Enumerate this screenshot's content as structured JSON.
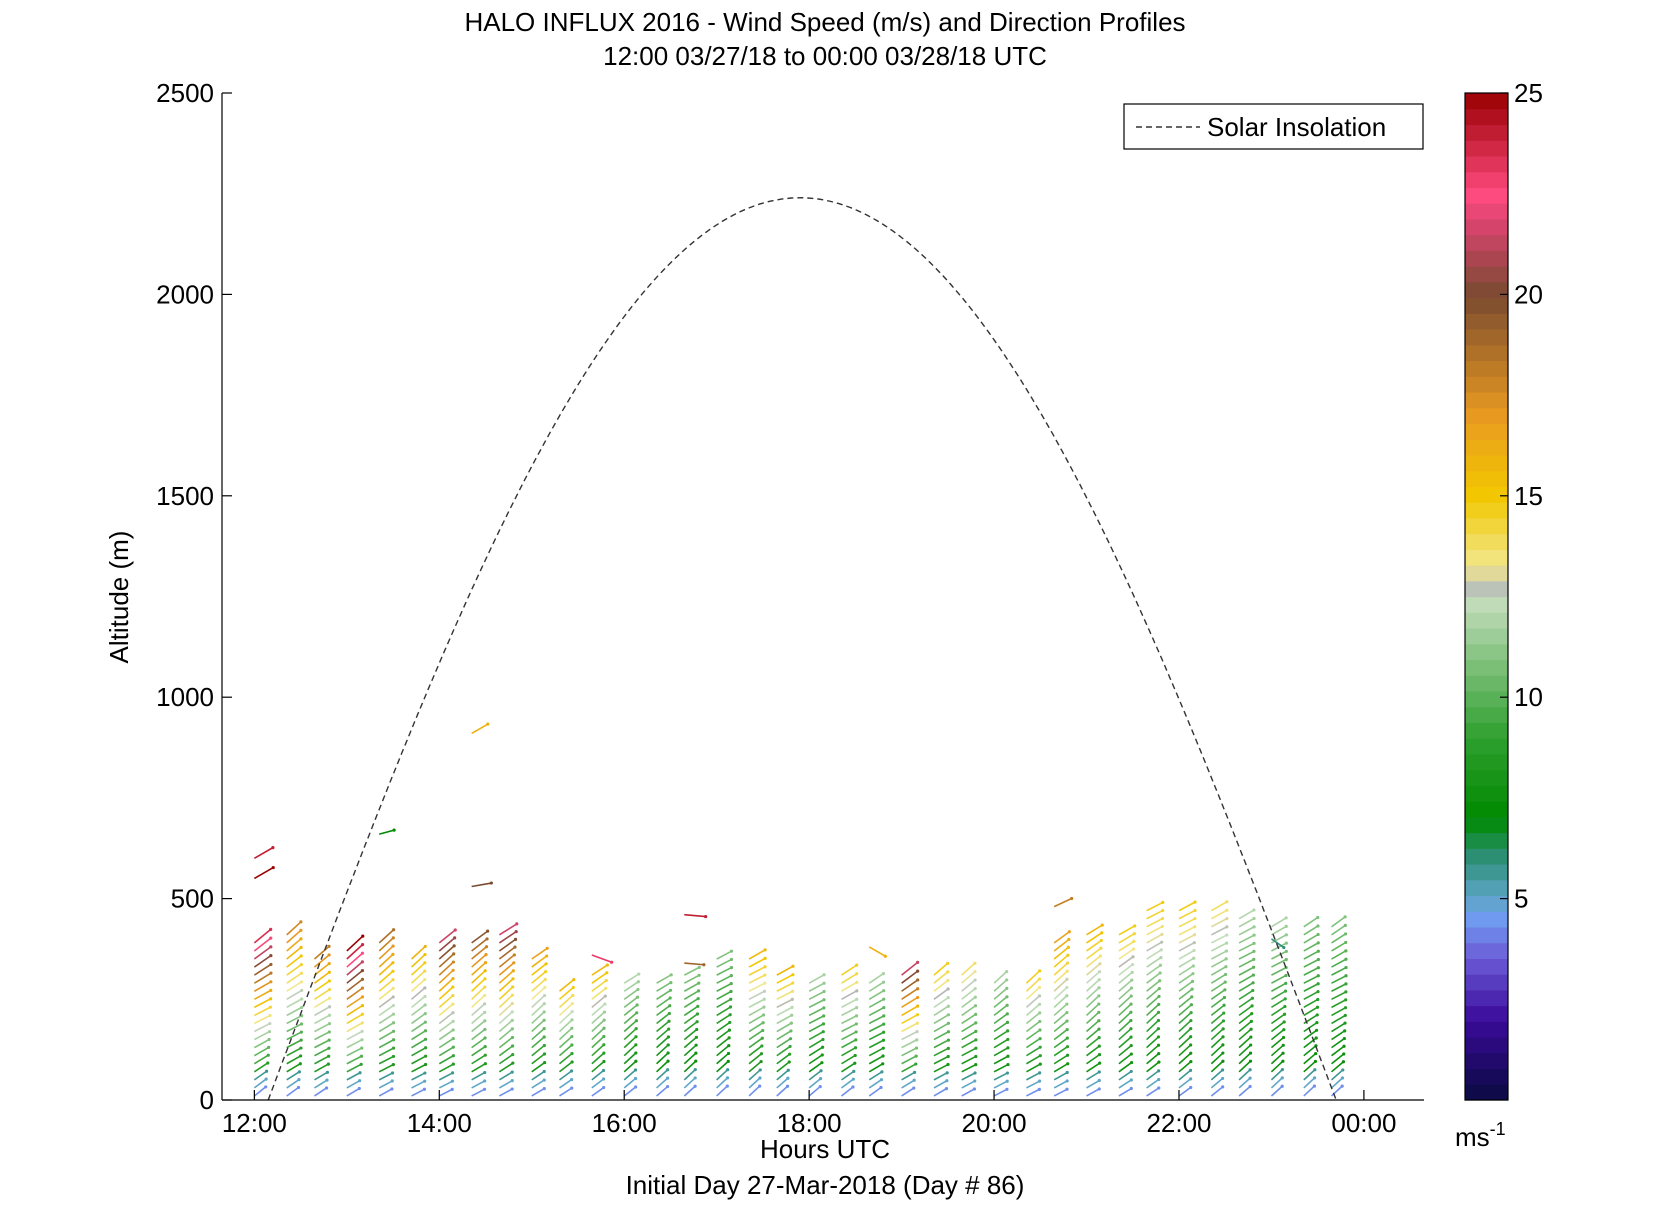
{
  "chart_data": {
    "type": "wind-barb-profile",
    "title": "HALO INFLUX 2016 - Wind Speed (m/s) and Direction Profiles",
    "subtitle": "12:00 03/27/18 to 00:00 03/28/18  UTC",
    "xlabel": "Hours UTC",
    "x_sublabel": "Initial Day 27-Mar-2018 (Day # 86)",
    "ylabel": "Altitude (m)",
    "xlim": [
      11.65,
      24.65
    ],
    "ylim": [
      0,
      2500
    ],
    "x_ticks": [
      {
        "value": 12,
        "label": "12:00"
      },
      {
        "value": 14,
        "label": "14:00"
      },
      {
        "value": 16,
        "label": "16:00"
      },
      {
        "value": 18,
        "label": "18:00"
      },
      {
        "value": 20,
        "label": "20:00"
      },
      {
        "value": 22,
        "label": "22:00"
      },
      {
        "value": 24,
        "label": "00:00"
      }
    ],
    "y_ticks": [
      0,
      500,
      1000,
      1500,
      2000,
      2500
    ],
    "legend": {
      "entry": "Solar Insolation",
      "style": "dashed",
      "position": "top-right"
    },
    "solar_insolation": {
      "rise_hour": 12.15,
      "set_hour": 23.7,
      "peak_hour": 17.9,
      "peak_altitude": 2240
    },
    "colorbar": {
      "range": [
        0,
        25
      ],
      "ticks": [
        5,
        10,
        15,
        20,
        25
      ],
      "unit": "ms",
      "unit_exponent": "-1",
      "colormap": [
        [
          0,
          "#0a0a40"
        ],
        [
          2,
          "#3a0a9a"
        ],
        [
          3.5,
          "#6b5bd6"
        ],
        [
          4.5,
          "#6f9af0"
        ],
        [
          5,
          "#5fa6c8"
        ],
        [
          6,
          "#2f8f7a"
        ],
        [
          7,
          "#008a00"
        ],
        [
          9,
          "#2fa02f"
        ],
        [
          12.5,
          "#c8dfc0"
        ],
        [
          12.8,
          "#b4b4b4"
        ],
        [
          13.2,
          "#f2e890"
        ],
        [
          15,
          "#f2c800"
        ],
        [
          17,
          "#e89a20"
        ],
        [
          20,
          "#7a4a30"
        ],
        [
          21.5,
          "#cc4466"
        ],
        [
          22.5,
          "#ff4a80"
        ],
        [
          25,
          "#990000"
        ]
      ]
    },
    "wind_profiles": [
      {
        "hour": 12.0,
        "top": 400,
        "max_speed": 24,
        "extra": [
          {
            "alt": 550,
            "speed": 25,
            "dir": 60
          },
          {
            "alt": 600,
            "speed": 24,
            "dir": 60
          }
        ]
      },
      {
        "hour": 12.35,
        "top": 420,
        "max_speed": 18
      },
      {
        "hour": 12.65,
        "top": 350,
        "max_speed": 18
      },
      {
        "hour": 13.0,
        "top": 370,
        "max_speed": 25
      },
      {
        "hour": 13.35,
        "top": 400,
        "max_speed": 19,
        "extra": [
          {
            "alt": 660,
            "speed": 7,
            "dir": 75
          }
        ]
      },
      {
        "hour": 13.7,
        "top": 350,
        "max_speed": 16
      },
      {
        "hour": 14.0,
        "top": 400,
        "max_speed": 22
      },
      {
        "hour": 14.35,
        "top": 400,
        "max_speed": 20,
        "extra": [
          {
            "alt": 530,
            "speed": 20,
            "dir": 80
          },
          {
            "alt": 910,
            "speed": 16,
            "dir": 60
          }
        ]
      },
      {
        "hour": 14.65,
        "top": 420,
        "max_speed": 22
      },
      {
        "hour": 15.0,
        "top": 360,
        "max_speed": 17
      },
      {
        "hour": 15.3,
        "top": 280,
        "max_speed": 16
      },
      {
        "hour": 15.65,
        "top": 320,
        "max_speed": 16,
        "extra": [
          {
            "alt": 360,
            "speed": 23,
            "dir": 110
          }
        ]
      },
      {
        "hour": 16.0,
        "top": 290,
        "max_speed": 12
      },
      {
        "hour": 16.35,
        "top": 290,
        "max_speed": 11
      },
      {
        "hour": 16.65,
        "top": 310,
        "max_speed": 11,
        "extra": [
          {
            "alt": 340,
            "speed": 19,
            "dir": 95
          },
          {
            "alt": 460,
            "speed": 24,
            "dir": 95
          }
        ]
      },
      {
        "hour": 17.0,
        "top": 360,
        "max_speed": 11
      },
      {
        "hour": 17.35,
        "top": 360,
        "max_speed": 16
      },
      {
        "hour": 17.65,
        "top": 320,
        "max_speed": 16
      },
      {
        "hour": 18.0,
        "top": 300,
        "max_speed": 12
      },
      {
        "hour": 18.35,
        "top": 320,
        "max_speed": 15
      },
      {
        "hour": 18.65,
        "top": 300,
        "max_speed": 12,
        "extra": [
          {
            "alt": 380,
            "speed": 16,
            "dir": 120
          }
        ]
      },
      {
        "hour": 19.0,
        "top": 320,
        "max_speed": 22
      },
      {
        "hour": 19.35,
        "top": 320,
        "max_speed": 15
      },
      {
        "hour": 19.65,
        "top": 320,
        "max_speed": 14
      },
      {
        "hour": 20.0,
        "top": 300,
        "max_speed": 12
      },
      {
        "hour": 20.35,
        "top": 300,
        "max_speed": 15
      },
      {
        "hour": 20.65,
        "top": 400,
        "max_speed": 17,
        "extra": [
          {
            "alt": 480,
            "speed": 18,
            "dir": 65
          }
        ]
      },
      {
        "hour": 21.0,
        "top": 420,
        "max_speed": 16
      },
      {
        "hour": 21.35,
        "top": 420,
        "max_speed": 15
      },
      {
        "hour": 21.65,
        "top": 480,
        "max_speed": 15
      },
      {
        "hour": 22.0,
        "top": 480,
        "max_speed": 15
      },
      {
        "hour": 22.35,
        "top": 480,
        "max_speed": 14
      },
      {
        "hour": 22.65,
        "top": 450,
        "max_speed": 12
      },
      {
        "hour": 23.0,
        "top": 440,
        "max_speed": 12,
        "extra": [
          {
            "alt": 400,
            "speed": 6,
            "dir": 125
          }
        ]
      },
      {
        "hour": 23.35,
        "top": 440,
        "max_speed": 11
      },
      {
        "hour": 23.65,
        "top": 440,
        "max_speed": 11
      }
    ]
  }
}
